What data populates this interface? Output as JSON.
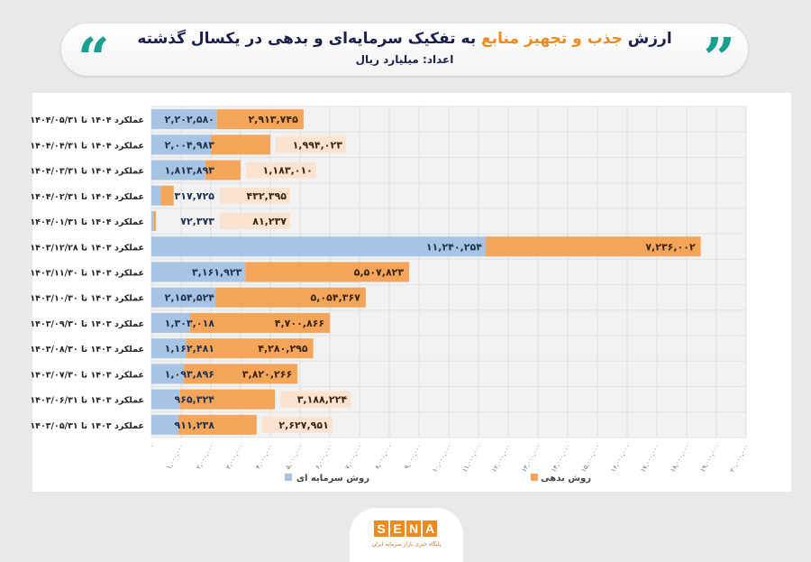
{
  "header": {
    "title_pre": "ارزش",
    "title_highlight": "جذب و تجهیز منابع",
    "title_post": "به تفکیک سرمایه‌ای و بدهی در یکسال گذشته",
    "subtitle": "اعداد: میلیارد ریال"
  },
  "colors": {
    "equity": "#a7c4e4",
    "debt": "#f5a55a",
    "accent": "#f08a1c",
    "quote": "#1a9e8f"
  },
  "logo": {
    "text": "SENA",
    "tagline": "پایگاه خبری بازار سرمایه ایران"
  },
  "chart_data": {
    "type": "bar",
    "orientation": "horizontal",
    "stacked": true,
    "title": "ارزش جذب و تجهیز منابع به تفکیک سرمایه‌ای و بدهی در یکسال گذشته",
    "xlim": [
      0,
      20000000
    ],
    "grid": true,
    "legend_position": "bottom",
    "categories": [
      "عملکرد ۱۴۰۴ تا ۱۴۰۴/۰۵/۳۱",
      "عملکرد ۱۴۰۴ تا ۱۴۰۴/۰۴/۳۱",
      "عملکرد ۱۴۰۴ تا ۱۴۰۴/۰۳/۳۱",
      "عملکرد ۱۴۰۴ تا ۱۴۰۴/۰۲/۳۱",
      "عملکرد ۱۴۰۴ تا ۱۴۰۴/۰۱/۳۱",
      "عملکرد ۱۴۰۳ تا ۱۴۰۳/۱۲/۲۸",
      "عملکرد ۱۴۰۳ تا ۱۴۰۳/۱۱/۳۰",
      "عملکرد ۱۴۰۳ تا ۱۴۰۳/۱۰/۳۰",
      "عملکرد ۱۴۰۳ تا ۱۴۰۳/۰۹/۳۰",
      "عملکرد ۱۴۰۳ تا ۱۴۰۳/۰۸/۳۰",
      "عملکرد ۱۴۰۳ تا ۱۴۰۳/۰۷/۳۰",
      "عملکرد ۱۴۰۳ تا ۱۴۰۳/۰۶/۳۱",
      "عملکرد ۱۴۰۳ تا ۱۴۰۳/۰۵/۳۱"
    ],
    "series": [
      {
        "name": "روش سرمایه ای",
        "values": [
          2202580,
          2004983,
          1813893,
          317725,
          72373,
          11240254,
          3161923,
          2154524,
          1303018,
          1162481,
          1093896,
          965324,
          911238
        ],
        "labels": [
          "۲,۲۰۲,۵۸۰",
          "۲,۰۰۴,۹۸۳",
          "۱,۸۱۳,۸۹۳",
          "۳۱۷,۷۲۵",
          "۷۲,۳۷۳",
          "۱۱,۲۴۰,۲۵۴",
          "۳,۱۶۱,۹۲۳",
          "۲,۱۵۴,۵۲۴",
          "۱,۳۰۳,۰۱۸",
          "۱,۱۶۲,۴۸۱",
          "۱,۰۹۳,۸۹۶",
          "۹۶۵,۳۲۴",
          "۹۱۱,۲۳۸"
        ]
      },
      {
        "name": "روش بدهی",
        "values": [
          2913745,
          1994023,
          1183010,
          432395,
          81237,
          7236002,
          5507823,
          5054367,
          4700866,
          4280295,
          3820266,
          3188224,
          2627951
        ],
        "labels": [
          "۲,۹۱۳,۷۴۵",
          "۱,۹۹۴,۰۲۳",
          "۱,۱۸۳,۰۱۰",
          "۴۳۲,۳۹۵",
          "۸۱,۲۳۷",
          "۷,۲۳۶,۰۰۲",
          "۵,۵۰۷,۸۲۳",
          "۵,۰۵۴,۳۶۷",
          "۴,۷۰۰,۸۶۶",
          "۴,۲۸۰,۲۹۵",
          "۳,۸۲۰,۲۶۶",
          "۳,۱۸۸,۲۲۴",
          "۲,۶۲۷,۹۵۱"
        ]
      }
    ],
    "x_tick_values": [
      0,
      1000000,
      2000000,
      3000000,
      4000000,
      5000000,
      6000000,
      7000000,
      8000000,
      9000000,
      10000000,
      11000000,
      12000000,
      13000000,
      14000000,
      15000000,
      16000000,
      17000000,
      18000000,
      19000000,
      20000000
    ],
    "x_tick_labels": [
      "۰",
      "۱,۰۰۰,۰۰۰",
      "۲,۰۰۰,۰۰۰",
      "۳,۰۰۰,۰۰۰",
      "۴,۰۰۰,۰۰۰",
      "۵,۰۰۰,۰۰۰",
      "۶,۰۰۰,۰۰۰",
      "۷,۰۰۰,۰۰۰",
      "۸,۰۰۰,۰۰۰",
      "۹,۰۰۰,۰۰۰",
      "۱۰,۰۰۰,۰۰۰",
      "۱۱,۰۰۰,۰۰۰",
      "۱۲,۰۰۰,۰۰۰",
      "۱۳,۰۰۰,۰۰۰",
      "۱۴,۰۰۰,۰۰۰",
      "۱۵,۰۰۰,۰۰۰",
      "۱۶,۰۰۰,۰۰۰",
      "۱۷,۰۰۰,۰۰۰",
      "۱۸,۰۰۰,۰۰۰",
      "۱۹,۰۰۰,۰۰۰",
      "۲۰,۰۰۰,۰۰۰"
    ]
  }
}
